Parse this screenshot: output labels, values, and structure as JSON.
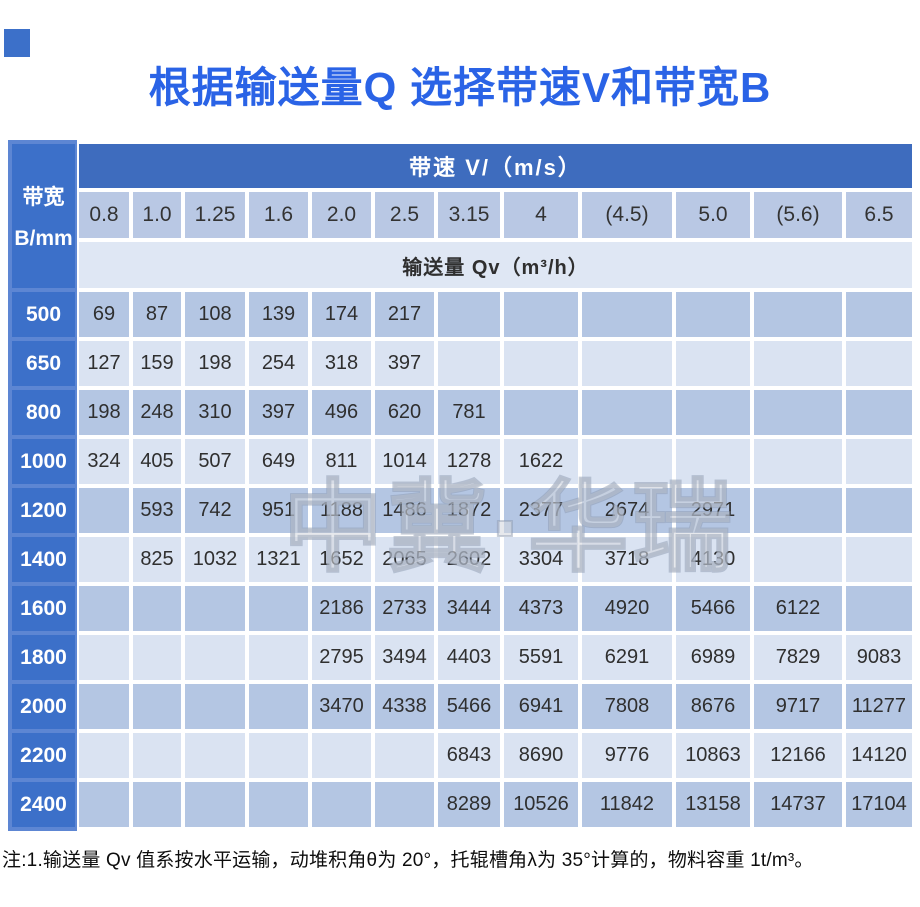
{
  "title": "根据输送量Q 选择带速V和带宽B",
  "watermark": "中冀·华瑞",
  "table": {
    "corner_header": {
      "line1": "带宽",
      "line2": "B/mm"
    },
    "speed_header": "带速 V/（m/s）",
    "qv_header": "输送量 Qv（m³/h）",
    "speeds": [
      "0.8",
      "1.0",
      "1.25",
      "1.6",
      "2.0",
      "2.5",
      "3.15",
      "4",
      "(4.5)",
      "5.0",
      "(5.6)",
      "6.5"
    ],
    "rows": [
      {
        "width": "500",
        "values": [
          "69",
          "87",
          "108",
          "139",
          "174",
          "217",
          "",
          "",
          "",
          "",
          "",
          ""
        ]
      },
      {
        "width": "650",
        "values": [
          "127",
          "159",
          "198",
          "254",
          "318",
          "397",
          "",
          "",
          "",
          "",
          "",
          ""
        ]
      },
      {
        "width": "800",
        "values": [
          "198",
          "248",
          "310",
          "397",
          "496",
          "620",
          "781",
          "",
          "",
          "",
          "",
          ""
        ]
      },
      {
        "width": "1000",
        "values": [
          "324",
          "405",
          "507",
          "649",
          "811",
          "1014",
          "1278",
          "1622",
          "",
          "",
          "",
          ""
        ]
      },
      {
        "width": "1200",
        "values": [
          "",
          "593",
          "742",
          "951",
          "1188",
          "1486",
          "1872",
          "2377",
          "2674",
          "2971",
          "",
          ""
        ]
      },
      {
        "width": "1400",
        "values": [
          "",
          "825",
          "1032",
          "1321",
          "1652",
          "2065",
          "2602",
          "3304",
          "3718",
          "4130",
          "",
          ""
        ]
      },
      {
        "width": "1600",
        "values": [
          "",
          "",
          "",
          "",
          "2186",
          "2733",
          "3444",
          "4373",
          "4920",
          "5466",
          "6122",
          ""
        ]
      },
      {
        "width": "1800",
        "values": [
          "",
          "",
          "",
          "",
          "2795",
          "3494",
          "4403",
          "5591",
          "6291",
          "6989",
          "7829",
          "9083"
        ]
      },
      {
        "width": "2000",
        "values": [
          "",
          "",
          "",
          "",
          "3470",
          "4338",
          "5466",
          "6941",
          "7808",
          "8676",
          "9717",
          "11277"
        ]
      },
      {
        "width": "2200",
        "values": [
          "",
          "",
          "",
          "",
          "",
          "",
          "6843",
          "8690",
          "9776",
          "10863",
          "12166",
          "14120"
        ]
      },
      {
        "width": "2400",
        "values": [
          "",
          "",
          "",
          "",
          "",
          "",
          "8289",
          "10526",
          "11842",
          "13158",
          "14737",
          "17104"
        ]
      }
    ]
  },
  "note": "注:1.输送量 Qv 值系按水平运输，动堆积角θ为 20°，托辊槽角λ为 35°计算的，物料容重 1t/m³。",
  "colors": {
    "accent": "#2a63e6",
    "band_blue": "#3e6cbe",
    "label_blue": "#3c70c9",
    "speed_cell": "#b9c8e4",
    "qv_cell": "#dfe7f4",
    "row_dark": "#b4c6e3",
    "row_light": "#dae3f2",
    "text_dark": "#2f2f2f"
  }
}
